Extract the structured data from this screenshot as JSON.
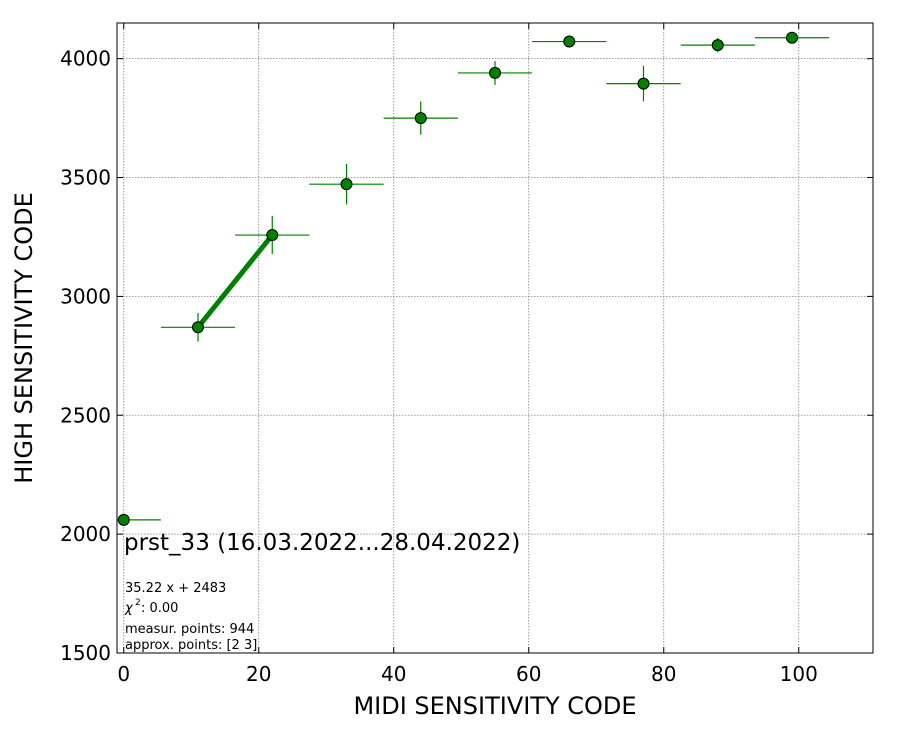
{
  "chart_data": {
    "type": "scatter",
    "title": "",
    "xlabel": "MIDI SENSITIVITY CODE",
    "ylabel": "HIGH SENSITIVITY CODE",
    "xlim": [
      -1,
      111
    ],
    "ylim": [
      1500,
      4150
    ],
    "xticks": [
      "0",
      "20",
      "40",
      "60",
      "80",
      "100"
    ],
    "yticks": [
      "1500",
      "2000",
      "2500",
      "3000",
      "3500",
      "4000"
    ],
    "grid": true,
    "point_color": "#008000",
    "point_edge_color": "#000000",
    "errorbar_color": "#008000",
    "fit_line_color": "#008000",
    "points": [
      {
        "x": 0,
        "y": 2060,
        "xerr": 5.5,
        "yerr": 0
      },
      {
        "x": 11,
        "y": 2870,
        "xerr": 5.5,
        "yerr": 60
      },
      {
        "x": 22,
        "y": 3258,
        "xerr": 5.5,
        "yerr": 80
      },
      {
        "x": 33,
        "y": 3472,
        "xerr": 5.5,
        "yerr": 85
      },
      {
        "x": 44,
        "y": 3750,
        "xerr": 5.5,
        "yerr": 70
      },
      {
        "x": 55,
        "y": 3940,
        "xerr": 5.5,
        "yerr": 50
      },
      {
        "x": 66,
        "y": 4072,
        "xerr": 5.5,
        "yerr": 0
      },
      {
        "x": 77,
        "y": 3895,
        "xerr": 5.5,
        "yerr": 75
      },
      {
        "x": 88,
        "y": 4057,
        "xerr": 5.5,
        "yerr": 30
      },
      {
        "x": 99,
        "y": 4088,
        "xerr": 5.5,
        "yerr": 0
      }
    ],
    "fit_line": {
      "x": [
        11,
        22
      ],
      "y": [
        2870,
        3258
      ]
    },
    "annotations": {
      "caption": "prst_33 (16.03.2022...28.04.2022)",
      "equation": "35.22 x + 2483",
      "chi2": ": 0.00",
      "measur_points": "measur. points: 944",
      "approx_points": "approx. points: [2 3]"
    }
  }
}
